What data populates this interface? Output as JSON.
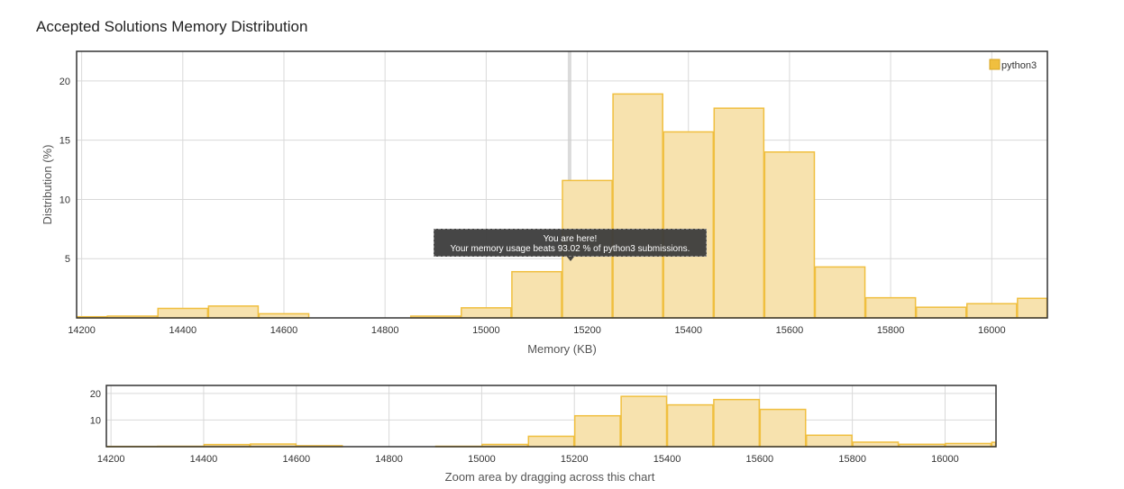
{
  "page": {
    "title": "Accepted Solutions Memory Distribution",
    "zoom_caption": "Zoom area by dragging across this chart"
  },
  "tooltip": {
    "line1": "You are here!",
    "line2": "Your memory usage beats 93.02 % of python3 submissions."
  },
  "colors": {
    "bar_fill": "#f7e2ae",
    "bar_stroke": "#f0bf3f",
    "frame": "#333333",
    "grid": "#d9d9d9",
    "marker": "#cccccc"
  },
  "chart_data": [
    {
      "type": "bar",
      "title": "Accepted Solutions Memory Distribution",
      "xlabel": "Memory (KB)",
      "ylabel": "Distribution (%)",
      "xlim": [
        14190,
        16110
      ],
      "ylim": [
        0,
        22.5
      ],
      "x_ticks": [
        14200,
        14400,
        14600,
        14800,
        15000,
        15200,
        15400,
        15600,
        15800,
        16000
      ],
      "y_ticks": [
        5,
        10,
        15,
        20
      ],
      "grid": true,
      "legend": {
        "position": "top-right",
        "entries": [
          "python3"
        ]
      },
      "marker_x": 15165,
      "series": [
        {
          "name": "python3",
          "bins": [
            {
              "x0": 14190,
              "x1": 14250,
              "value": 0.1
            },
            {
              "x0": 14250,
              "x1": 14350,
              "value": 0.15
            },
            {
              "x0": 14350,
              "x1": 14450,
              "value": 0.8
            },
            {
              "x0": 14450,
              "x1": 14550,
              "value": 1.0
            },
            {
              "x0": 14550,
              "x1": 14650,
              "value": 0.35
            },
            {
              "x0": 14850,
              "x1": 14950,
              "value": 0.15
            },
            {
              "x0": 14950,
              "x1": 15050,
              "value": 0.85
            },
            {
              "x0": 15050,
              "x1": 15150,
              "value": 3.9
            },
            {
              "x0": 15150,
              "x1": 15250,
              "value": 11.6
            },
            {
              "x0": 15250,
              "x1": 15350,
              "value": 18.9
            },
            {
              "x0": 15350,
              "x1": 15450,
              "value": 15.7
            },
            {
              "x0": 15450,
              "x1": 15550,
              "value": 17.7
            },
            {
              "x0": 15550,
              "x1": 15650,
              "value": 14.0
            },
            {
              "x0": 15650,
              "x1": 15750,
              "value": 4.3
            },
            {
              "x0": 15750,
              "x1": 15850,
              "value": 1.7
            },
            {
              "x0": 15850,
              "x1": 15950,
              "value": 0.9
            },
            {
              "x0": 15950,
              "x1": 16050,
              "value": 1.2
            },
            {
              "x0": 16050,
              "x1": 16110,
              "value": 1.65
            }
          ]
        }
      ]
    },
    {
      "type": "bar",
      "title": "",
      "xlabel": "",
      "ylabel": "",
      "xlim": [
        14190,
        16110
      ],
      "ylim": [
        0,
        23
      ],
      "x_ticks": [
        14200,
        14400,
        14600,
        14800,
        15000,
        15200,
        15400,
        15600,
        15800,
        16000
      ],
      "y_ticks": [
        10,
        20
      ],
      "grid": true,
      "series": [
        {
          "name": "",
          "bins": [
            {
              "x0": 14190,
              "x1": 14300,
              "value": 0.1
            },
            {
              "x0": 14300,
              "x1": 14400,
              "value": 0.15
            },
            {
              "x0": 14400,
              "x1": 14500,
              "value": 0.8
            },
            {
              "x0": 14500,
              "x1": 14600,
              "value": 1.0
            },
            {
              "x0": 14600,
              "x1": 14700,
              "value": 0.35
            },
            {
              "x0": 14900,
              "x1": 15000,
              "value": 0.15
            },
            {
              "x0": 15000,
              "x1": 15100,
              "value": 0.85
            },
            {
              "x0": 15100,
              "x1": 15200,
              "value": 3.9
            },
            {
              "x0": 15200,
              "x1": 15300,
              "value": 11.6
            },
            {
              "x0": 15300,
              "x1": 15400,
              "value": 18.9
            },
            {
              "x0": 15400,
              "x1": 15500,
              "value": 15.7
            },
            {
              "x0": 15500,
              "x1": 15600,
              "value": 17.7
            },
            {
              "x0": 15600,
              "x1": 15700,
              "value": 14.0
            },
            {
              "x0": 15700,
              "x1": 15800,
              "value": 4.3
            },
            {
              "x0": 15800,
              "x1": 15900,
              "value": 1.7
            },
            {
              "x0": 15900,
              "x1": 16000,
              "value": 0.9
            },
            {
              "x0": 16000,
              "x1": 16100,
              "value": 1.2
            },
            {
              "x0": 16100,
              "x1": 16110,
              "value": 1.65
            }
          ]
        }
      ]
    }
  ]
}
